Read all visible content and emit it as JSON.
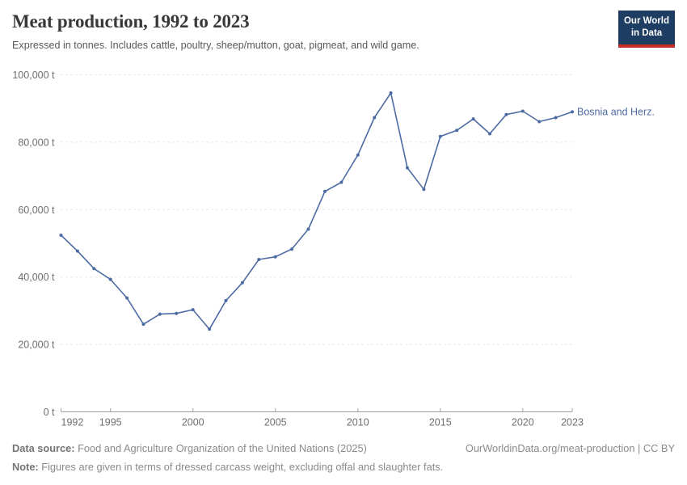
{
  "header": {
    "title": "Meat production, 1992 to 2023",
    "subtitle": "Expressed in tonnes. Includes cattle, poultry, sheep/mutton, goat, pigmeat, and wild game.",
    "logo": {
      "line1": "Our World",
      "line2": "in Data",
      "bg_color": "#1d3d63",
      "bar_color": "#c62d26"
    }
  },
  "chart_data": {
    "type": "line",
    "title": "Meat production, 1992 to 2023",
    "xlabel": "",
    "ylabel": "",
    "unit": "t",
    "xlim": [
      1992,
      2023
    ],
    "ylim": [
      0,
      100000
    ],
    "grid": "horizontal dashed",
    "legend_position": "end-of-line label",
    "x_ticks": [
      1992,
      1995,
      2000,
      2005,
      2010,
      2015,
      2020,
      2023
    ],
    "y_ticks": [
      0,
      20000,
      40000,
      60000,
      80000,
      100000
    ],
    "y_tick_labels": [
      "0 t",
      "20,000 t",
      "40,000 t",
      "60,000 t",
      "80,000 t",
      "100,000 t"
    ],
    "series": [
      {
        "name": "Bosnia and Herz.",
        "color": "#4d6ba3",
        "x": [
          1992,
          1993,
          1994,
          1995,
          1996,
          1997,
          1998,
          1999,
          2000,
          2001,
          2002,
          2003,
          2004,
          2005,
          2006,
          2007,
          2008,
          2009,
          2010,
          2011,
          2012,
          2013,
          2014,
          2015,
          2016,
          2017,
          2018,
          2019,
          2020,
          2021,
          2022,
          2023
        ],
        "values": [
          52400,
          47700,
          42500,
          39300,
          33800,
          26000,
          29000,
          29200,
          30300,
          24500,
          33000,
          38300,
          45200,
          46000,
          48300,
          54200,
          65400,
          68100,
          76200,
          87300,
          94600,
          72400,
          66000,
          81700,
          83500,
          86900,
          82500,
          88200,
          89200,
          86100,
          87300,
          89000
        ]
      }
    ]
  },
  "footer": {
    "data_source_label": "Data source:",
    "data_source_text": " Food and Agriculture Organization of the United Nations (2025)",
    "credit": "OurWorldinData.org/meat-production | CC BY",
    "note_label": "Note:",
    "note_text": " Figures are given in terms of dressed carcass weight, excluding offal and slaughter fats."
  }
}
